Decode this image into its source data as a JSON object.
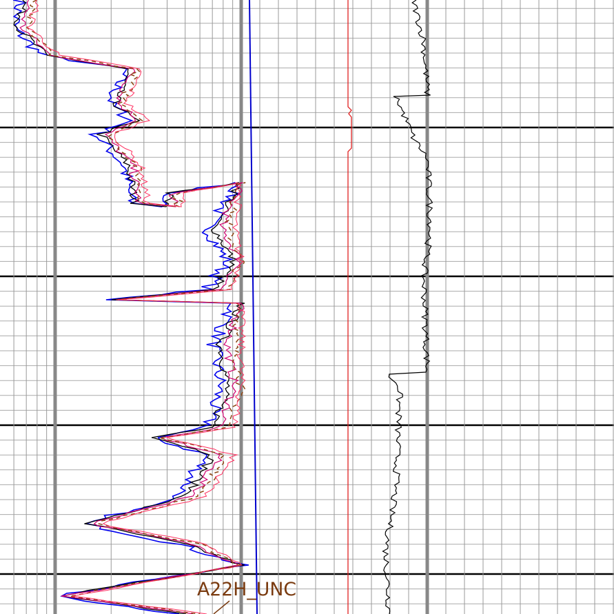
{
  "annotation": {
    "label": "A22H_UNC"
  }
}
